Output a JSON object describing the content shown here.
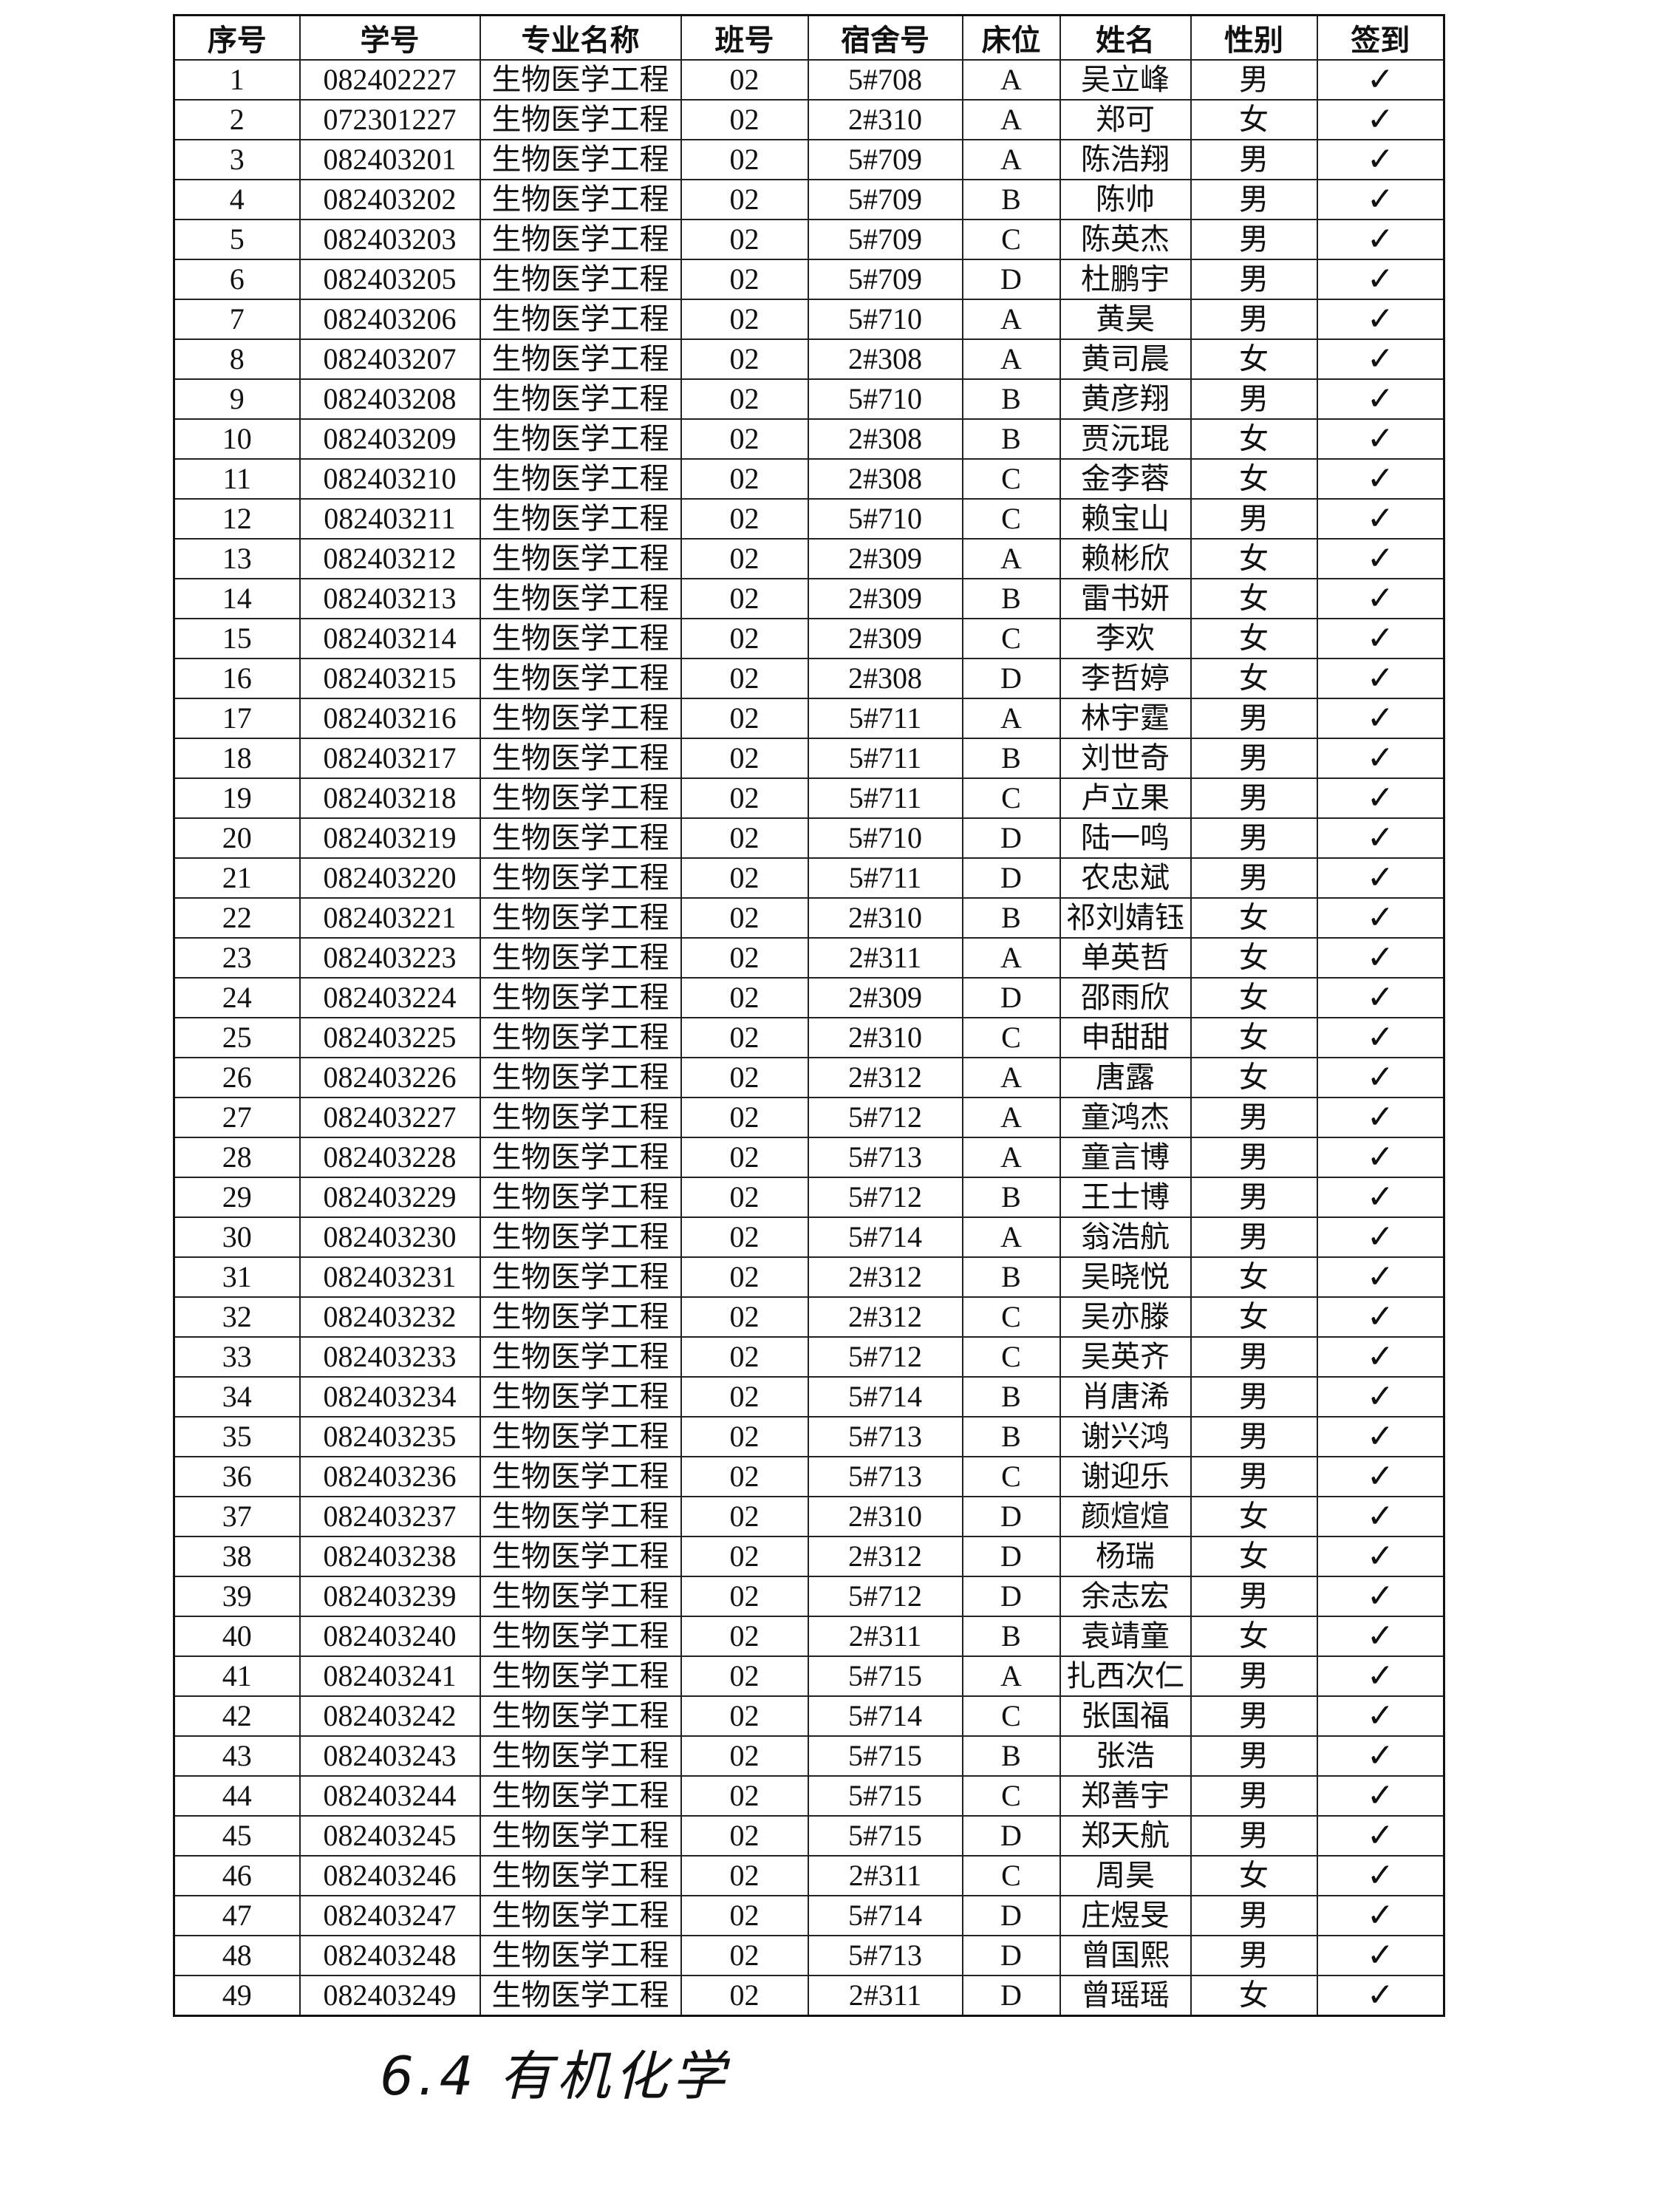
{
  "table": {
    "headers": [
      "序号",
      "学号",
      "专业名称",
      "班号",
      "宿舍号",
      "床位",
      "姓名",
      "性别",
      "签到"
    ],
    "rows": [
      [
        "1",
        "082402227",
        "生物医学工程",
        "02",
        "5#708",
        "A",
        "吴立峰",
        "男",
        "✓"
      ],
      [
        "2",
        "072301227",
        "生物医学工程",
        "02",
        "2#310",
        "A",
        "郑可",
        "女",
        "✓"
      ],
      [
        "3",
        "082403201",
        "生物医学工程",
        "02",
        "5#709",
        "A",
        "陈浩翔",
        "男",
        "✓"
      ],
      [
        "4",
        "082403202",
        "生物医学工程",
        "02",
        "5#709",
        "B",
        "陈帅",
        "男",
        "✓"
      ],
      [
        "5",
        "082403203",
        "生物医学工程",
        "02",
        "5#709",
        "C",
        "陈英杰",
        "男",
        "✓"
      ],
      [
        "6",
        "082403205",
        "生物医学工程",
        "02",
        "5#709",
        "D",
        "杜鹏宇",
        "男",
        "✓"
      ],
      [
        "7",
        "082403206",
        "生物医学工程",
        "02",
        "5#710",
        "A",
        "黄昊",
        "男",
        "✓"
      ],
      [
        "8",
        "082403207",
        "生物医学工程",
        "02",
        "2#308",
        "A",
        "黄司晨",
        "女",
        "✓"
      ],
      [
        "9",
        "082403208",
        "生物医学工程",
        "02",
        "5#710",
        "B",
        "黄彦翔",
        "男",
        "✓"
      ],
      [
        "10",
        "082403209",
        "生物医学工程",
        "02",
        "2#308",
        "B",
        "贾沅琨",
        "女",
        "✓"
      ],
      [
        "11",
        "082403210",
        "生物医学工程",
        "02",
        "2#308",
        "C",
        "金李蓉",
        "女",
        "✓"
      ],
      [
        "12",
        "082403211",
        "生物医学工程",
        "02",
        "5#710",
        "C",
        "赖宝山",
        "男",
        "✓"
      ],
      [
        "13",
        "082403212",
        "生物医学工程",
        "02",
        "2#309",
        "A",
        "赖彬欣",
        "女",
        "✓"
      ],
      [
        "14",
        "082403213",
        "生物医学工程",
        "02",
        "2#309",
        "B",
        "雷书妍",
        "女",
        "✓"
      ],
      [
        "15",
        "082403214",
        "生物医学工程",
        "02",
        "2#309",
        "C",
        "李欢",
        "女",
        "✓"
      ],
      [
        "16",
        "082403215",
        "生物医学工程",
        "02",
        "2#308",
        "D",
        "李哲婷",
        "女",
        "✓"
      ],
      [
        "17",
        "082403216",
        "生物医学工程",
        "02",
        "5#711",
        "A",
        "林宇霆",
        "男",
        "✓"
      ],
      [
        "18",
        "082403217",
        "生物医学工程",
        "02",
        "5#711",
        "B",
        "刘世奇",
        "男",
        "✓"
      ],
      [
        "19",
        "082403218",
        "生物医学工程",
        "02",
        "5#711",
        "C",
        "卢立果",
        "男",
        "✓"
      ],
      [
        "20",
        "082403219",
        "生物医学工程",
        "02",
        "5#710",
        "D",
        "陆一鸣",
        "男",
        "✓"
      ],
      [
        "21",
        "082403220",
        "生物医学工程",
        "02",
        "5#711",
        "D",
        "农忠斌",
        "男",
        "✓"
      ],
      [
        "22",
        "082403221",
        "生物医学工程",
        "02",
        "2#310",
        "B",
        "祁刘婧钰",
        "女",
        "✓"
      ],
      [
        "23",
        "082403223",
        "生物医学工程",
        "02",
        "2#311",
        "A",
        "单英哲",
        "女",
        "✓"
      ],
      [
        "24",
        "082403224",
        "生物医学工程",
        "02",
        "2#309",
        "D",
        "邵雨欣",
        "女",
        "✓"
      ],
      [
        "25",
        "082403225",
        "生物医学工程",
        "02",
        "2#310",
        "C",
        "申甜甜",
        "女",
        "✓"
      ],
      [
        "26",
        "082403226",
        "生物医学工程",
        "02",
        "2#312",
        "A",
        "唐露",
        "女",
        "✓"
      ],
      [
        "27",
        "082403227",
        "生物医学工程",
        "02",
        "5#712",
        "A",
        "童鸿杰",
        "男",
        "✓"
      ],
      [
        "28",
        "082403228",
        "生物医学工程",
        "02",
        "5#713",
        "A",
        "童言博",
        "男",
        "✓"
      ],
      [
        "29",
        "082403229",
        "生物医学工程",
        "02",
        "5#712",
        "B",
        "王士博",
        "男",
        "✓"
      ],
      [
        "30",
        "082403230",
        "生物医学工程",
        "02",
        "5#714",
        "A",
        "翁浩航",
        "男",
        "✓"
      ],
      [
        "31",
        "082403231",
        "生物医学工程",
        "02",
        "2#312",
        "B",
        "吴晓悦",
        "女",
        "✓"
      ],
      [
        "32",
        "082403232",
        "生物医学工程",
        "02",
        "2#312",
        "C",
        "吴亦滕",
        "女",
        "✓"
      ],
      [
        "33",
        "082403233",
        "生物医学工程",
        "02",
        "5#712",
        "C",
        "吴英齐",
        "男",
        "✓"
      ],
      [
        "34",
        "082403234",
        "生物医学工程",
        "02",
        "5#714",
        "B",
        "肖唐浠",
        "男",
        "✓"
      ],
      [
        "35",
        "082403235",
        "生物医学工程",
        "02",
        "5#713",
        "B",
        "谢兴鸿",
        "男",
        "✓"
      ],
      [
        "36",
        "082403236",
        "生物医学工程",
        "02",
        "5#713",
        "C",
        "谢迎乐",
        "男",
        "✓"
      ],
      [
        "37",
        "082403237",
        "生物医学工程",
        "02",
        "2#310",
        "D",
        "颜煊煊",
        "女",
        "✓"
      ],
      [
        "38",
        "082403238",
        "生物医学工程",
        "02",
        "2#312",
        "D",
        "杨瑞",
        "女",
        "✓"
      ],
      [
        "39",
        "082403239",
        "生物医学工程",
        "02",
        "5#712",
        "D",
        "余志宏",
        "男",
        "✓"
      ],
      [
        "40",
        "082403240",
        "生物医学工程",
        "02",
        "2#311",
        "B",
        "袁靖童",
        "女",
        "✓"
      ],
      [
        "41",
        "082403241",
        "生物医学工程",
        "02",
        "5#715",
        "A",
        "扎西次仁",
        "男",
        "✓"
      ],
      [
        "42",
        "082403242",
        "生物医学工程",
        "02",
        "5#714",
        "C",
        "张国福",
        "男",
        "✓"
      ],
      [
        "43",
        "082403243",
        "生物医学工程",
        "02",
        "5#715",
        "B",
        "张浩",
        "男",
        "✓"
      ],
      [
        "44",
        "082403244",
        "生物医学工程",
        "02",
        "5#715",
        "C",
        "郑善宇",
        "男",
        "✓"
      ],
      [
        "45",
        "082403245",
        "生物医学工程",
        "02",
        "5#715",
        "D",
        "郑天航",
        "男",
        "✓"
      ],
      [
        "46",
        "082403246",
        "生物医学工程",
        "02",
        "2#311",
        "C",
        "周昊",
        "女",
        "✓"
      ],
      [
        "47",
        "082403247",
        "生物医学工程",
        "02",
        "5#714",
        "D",
        "庄煜旻",
        "男",
        "✓"
      ],
      [
        "48",
        "082403248",
        "生物医学工程",
        "02",
        "5#713",
        "D",
        "曾国熙",
        "男",
        "✓"
      ],
      [
        "49",
        "082403249",
        "生物医学工程",
        "02",
        "2#311",
        "D",
        "曾瑶瑶",
        "女",
        "✓"
      ]
    ]
  },
  "note": "6.4 有机化学"
}
